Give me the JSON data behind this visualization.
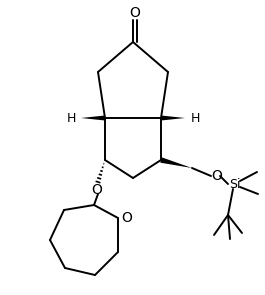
{
  "bg_color": "#ffffff",
  "line_color": "#000000",
  "line_width": 1.5,
  "wedge_color": "#000000",
  "text_color": "#000000",
  "O_label": "O",
  "Si_label": "Si",
  "H_label": "H",
  "font_size": 9,
  "small_font": 8
}
